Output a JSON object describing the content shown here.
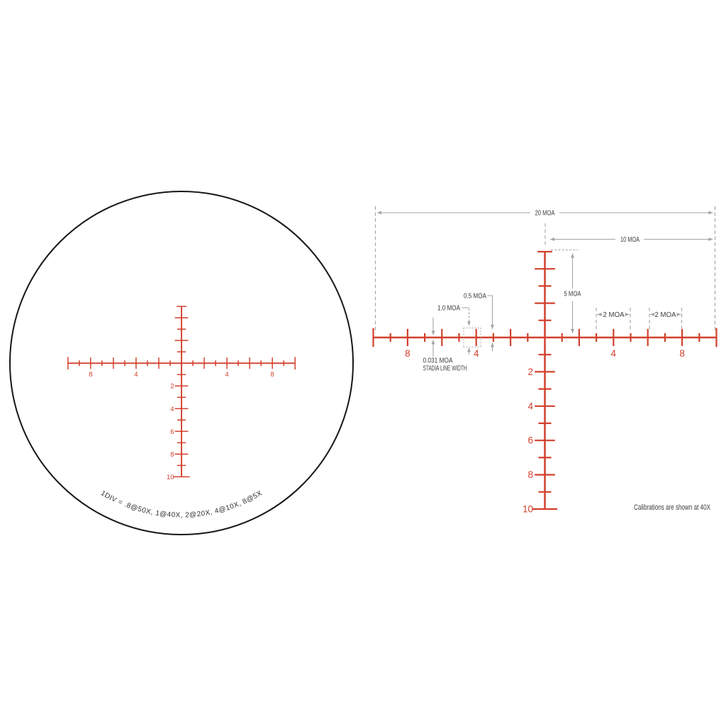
{
  "palette": {
    "reticle_red": "#d2402d",
    "dimension_gray": "#a4a4a4",
    "annotation_text": "#3d3d3d",
    "circle_stroke": "#171717",
    "legend_text": "#303030",
    "background": "#ffffff"
  },
  "scope_view": {
    "legend_text": "1DIV = .8@50X, 1@40X, 2@20X, 4@10X, 8@5X",
    "h_labels": [
      {
        "moa": -8,
        "text": "8"
      },
      {
        "moa": -4,
        "text": "4"
      },
      {
        "moa": 4,
        "text": "4"
      },
      {
        "moa": 8,
        "text": "8"
      }
    ],
    "v_labels": [
      {
        "moa": 2,
        "text": "2"
      },
      {
        "moa": 4,
        "text": "4"
      },
      {
        "moa": 6,
        "text": "6"
      },
      {
        "moa": 8,
        "text": "8"
      },
      {
        "moa": 10,
        "text": "10"
      }
    ]
  },
  "diagram": {
    "dims": {
      "full_width": "20 MOA",
      "half_width": "10 MOA",
      "post_height": "5 MOA",
      "minor_tick_height": "0.5 MOA",
      "major_tick_height": "1.0 MOA",
      "right_span_inner": "2 MOA",
      "right_span_outer": "2 MOA",
      "stadia_value": "0.031 MOA",
      "stadia_caption": "STADIA LINE WIDTH",
      "footnote": "Calibrations are shown at 40X"
    },
    "h_labels": [
      {
        "moa": -8,
        "text": "8"
      },
      {
        "moa": -4,
        "text": "4"
      },
      {
        "moa": 4,
        "text": "4"
      },
      {
        "moa": 8,
        "text": "8"
      }
    ],
    "v_labels": [
      {
        "moa": 2,
        "text": "2"
      },
      {
        "moa": 4,
        "text": "4"
      },
      {
        "moa": 6,
        "text": "6"
      },
      {
        "moa": 8,
        "text": "8"
      },
      {
        "moa": 10,
        "text": "10"
      }
    ]
  },
  "reticle_model": {
    "horizontal_extent_moa": 10,
    "vertical_up_extent_moa": 5,
    "vertical_down_extent_moa": 10,
    "tick_interval_moa": 1,
    "minor_tick_size_moa": 0.5,
    "major_tick_size_moa": 1.0,
    "stadia_line_width_moa": 0.031,
    "full_width_moa": 20,
    "half_width_moa": 10,
    "right_span_moa": 2
  }
}
